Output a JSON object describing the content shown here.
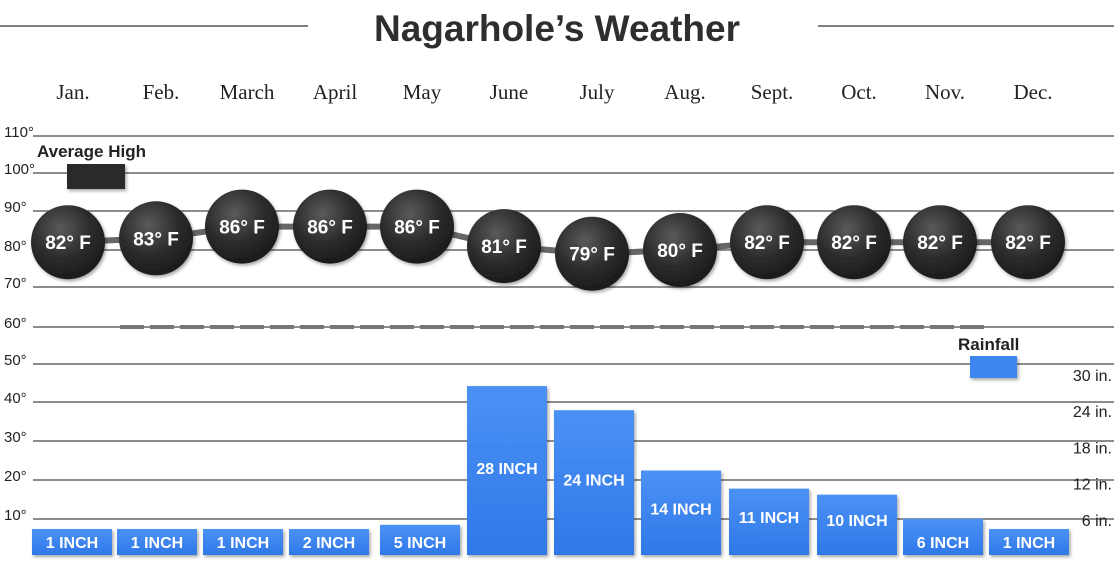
{
  "chart_data": {
    "type": "bar",
    "title": "Nagarhole’s Weather",
    "categories": [
      "Jan.",
      "Feb.",
      "March",
      "April",
      "May",
      "June",
      "July",
      "Aug.",
      "Sept.",
      "Oct.",
      "Nov.",
      "Dec."
    ],
    "left_axis_ticks": [
      "10°",
      "20°",
      "30°",
      "40°",
      "50°",
      "60°",
      "70°",
      "80°",
      "90°",
      "100°",
      "110°"
    ],
    "right_axis_ticks": [
      "6 in.",
      "12 in.",
      "18 in.",
      "24 in.",
      "30 in."
    ],
    "grid": true,
    "series": [
      {
        "name": "Average High",
        "type": "line",
        "values": [
          82,
          83,
          86,
          86,
          86,
          81,
          79,
          80,
          82,
          82,
          82,
          82
        ],
        "labels": [
          "82° F",
          "83° F",
          "86° F",
          "86° F",
          "86° F",
          "81° F",
          "79° F",
          "80° F",
          "82° F",
          "82° F",
          "82° F",
          "82° F"
        ],
        "color": "#2b2b2b"
      },
      {
        "name": "Rainfall",
        "type": "bar",
        "values": [
          1,
          1,
          1,
          2,
          5,
          28,
          24,
          14,
          11,
          10,
          6,
          1
        ],
        "labels": [
          "1 INCH",
          "1 INCH",
          "1 INCH",
          "2 INCH",
          "5 INCH",
          "28 INCH",
          "24 INCH",
          "14 INCH",
          "11 INCH",
          "10 INCH",
          "6 INCH",
          "1 INCH"
        ],
        "color": "#3d86f0"
      }
    ],
    "colors": {
      "bar": "#3d86f0",
      "bar_dark": "#2a6fd6",
      "circle": "#2b2b2b",
      "grid": "#555555",
      "dash": "#777777"
    }
  }
}
